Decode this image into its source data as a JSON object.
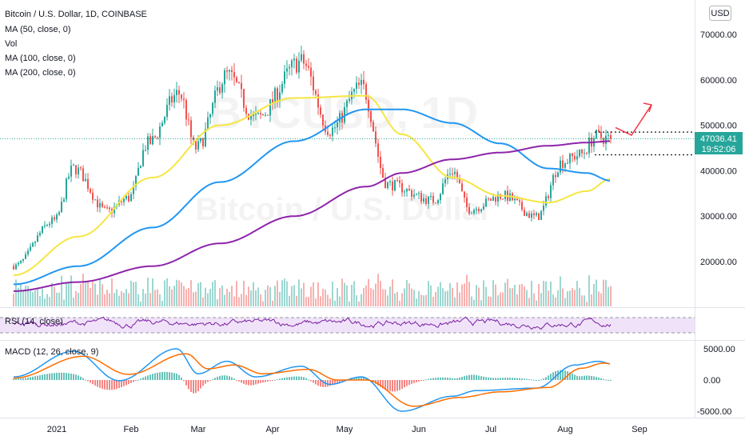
{
  "symbol_title": "Bitcoin / U.S. Dollar, 1D, COINBASE",
  "indicators": [
    "MA (50, close, 0)",
    "Vol",
    "MA (100, close, 0)",
    "MA (200, close, 0)"
  ],
  "watermark_symbol": "BTCUSD, 1D",
  "watermark_name": "Bitcoin / U.S. Dollar",
  "currency_button": "USD",
  "price_tag": "47036.41",
  "countdown_tag": "19:52:06",
  "rsi_label": "RSI (14, close)",
  "macd_label": "MACD (12, 26, close, 9)",
  "colors": {
    "up": "#26a69a",
    "down": "#ef5350",
    "ma50": "#f5e642",
    "ma100": "#2196f3",
    "ma200": "#8e24aa",
    "rsi": "#7b1fa2",
    "macd": "#2196f3",
    "signal": "#ff6d00",
    "arrow": "#f23645",
    "price_tag": "#26a69a"
  },
  "chart_data": [
    {
      "type": "candlestick",
      "title": "Bitcoin / U.S. Dollar, 1D, COINBASE",
      "x_tick_labels": [
        "2021",
        "Feb",
        "Mar",
        "Apr",
        "May",
        "Jun",
        "Jul",
        "Aug",
        "Sep"
      ],
      "y_tick_labels": [
        "70000.00",
        "60000.00",
        "50000.00",
        "40000.00",
        "30000.00",
        "20000.00"
      ],
      "ylim": [
        13000,
        74000
      ],
      "last_price": 47036.41,
      "ohlc_anchors": [
        {
          "date": "2020-12-14",
          "close": 19000
        },
        {
          "date": "2020-12-31",
          "close": 29000
        },
        {
          "date": "2021-01-08",
          "close": 40500
        },
        {
          "date": "2021-01-22",
          "close": 31000
        },
        {
          "date": "2021-01-31",
          "close": 34000
        },
        {
          "date": "2021-02-08",
          "close": 46000
        },
        {
          "date": "2021-02-21",
          "close": 57000
        },
        {
          "date": "2021-02-28",
          "close": 45000
        },
        {
          "date": "2021-03-13",
          "close": 61000
        },
        {
          "date": "2021-03-25",
          "close": 51500
        },
        {
          "date": "2021-04-13",
          "close": 64000
        },
        {
          "date": "2021-04-25",
          "close": 49000
        },
        {
          "date": "2021-05-08",
          "close": 58500
        },
        {
          "date": "2021-05-19",
          "close": 37000
        },
        {
          "date": "2021-06-07",
          "close": 33500
        },
        {
          "date": "2021-06-15",
          "close": 40000
        },
        {
          "date": "2021-06-22",
          "close": 31500
        },
        {
          "date": "2021-07-06",
          "close": 34500
        },
        {
          "date": "2021-07-20",
          "close": 29800
        },
        {
          "date": "2021-07-31",
          "close": 42000
        },
        {
          "date": "2021-08-07",
          "close": 43500
        },
        {
          "date": "2021-08-14",
          "close": 47500
        },
        {
          "date": "2021-08-20",
          "close": 47036
        }
      ],
      "moving_averages": {
        "MA 50": [
          {
            "date": "2020-12-14",
            "value": 17000
          },
          {
            "date": "2021-01-10",
            "value": 25500
          },
          {
            "date": "2021-02-10",
            "value": 38500
          },
          {
            "date": "2021-03-10",
            "value": 50000
          },
          {
            "date": "2021-04-10",
            "value": 56000
          },
          {
            "date": "2021-05-10",
            "value": 56500
          },
          {
            "date": "2021-05-25",
            "value": 48000
          },
          {
            "date": "2021-06-15",
            "value": 38500
          },
          {
            "date": "2021-07-05",
            "value": 34500
          },
          {
            "date": "2021-07-25",
            "value": 33000
          },
          {
            "date": "2021-08-10",
            "value": 35500
          },
          {
            "date": "2021-08-20",
            "value": 38200
          }
        ],
        "MA 100": [
          {
            "date": "2020-12-14",
            "value": 15000
          },
          {
            "date": "2021-01-10",
            "value": 19000
          },
          {
            "date": "2021-02-10",
            "value": 27500
          },
          {
            "date": "2021-03-10",
            "value": 37500
          },
          {
            "date": "2021-04-10",
            "value": 46500
          },
          {
            "date": "2021-05-10",
            "value": 53500
          },
          {
            "date": "2021-05-25",
            "value": 53500
          },
          {
            "date": "2021-06-15",
            "value": 50500
          },
          {
            "date": "2021-07-05",
            "value": 46000
          },
          {
            "date": "2021-07-25",
            "value": 40500
          },
          {
            "date": "2021-08-10",
            "value": 39500
          },
          {
            "date": "2021-08-20",
            "value": 37800
          }
        ],
        "MA 200": [
          {
            "date": "2020-12-14",
            "value": 13500
          },
          {
            "date": "2021-01-10",
            "value": 15500
          },
          {
            "date": "2021-02-10",
            "value": 19000
          },
          {
            "date": "2021-03-10",
            "value": 24000
          },
          {
            "date": "2021-04-10",
            "value": 30000
          },
          {
            "date": "2021-05-10",
            "value": 36500
          },
          {
            "date": "2021-05-25",
            "value": 39500
          },
          {
            "date": "2021-06-15",
            "value": 42500
          },
          {
            "date": "2021-07-05",
            "value": 44000
          },
          {
            "date": "2021-07-25",
            "value": 45500
          },
          {
            "date": "2021-08-10",
            "value": 46200
          },
          {
            "date": "2021-08-20",
            "value": 46500
          }
        ]
      },
      "horizontal_levels": [
        48500,
        43500
      ]
    },
    {
      "type": "line",
      "title": "RSI (14, close)",
      "levels": [
        70,
        30
      ]
    },
    {
      "type": "line",
      "title": "MACD (12, 26, close, 9)",
      "y_tick_labels": [
        "5000.00",
        "0.00",
        "-5000.00"
      ],
      "ylim": [
        -6200,
        6000
      ],
      "macd": [
        {
          "date": "2020-12-14",
          "value": 500
        },
        {
          "date": "2021-01-08",
          "value": 4600
        },
        {
          "date": "2021-01-27",
          "value": -100
        },
        {
          "date": "2021-02-20",
          "value": 5000
        },
        {
          "date": "2021-03-01",
          "value": 1000
        },
        {
          "date": "2021-03-13",
          "value": 3000
        },
        {
          "date": "2021-03-25",
          "value": 500
        },
        {
          "date": "2021-04-13",
          "value": 2200
        },
        {
          "date": "2021-04-25",
          "value": -700
        },
        {
          "date": "2021-05-08",
          "value": 500
        },
        {
          "date": "2021-05-25",
          "value": -5000
        },
        {
          "date": "2021-06-15",
          "value": -2600
        },
        {
          "date": "2021-06-25",
          "value": -1700
        },
        {
          "date": "2021-07-20",
          "value": -1300
        },
        {
          "date": "2021-08-05",
          "value": 2400
        },
        {
          "date": "2021-08-15",
          "value": 3000
        },
        {
          "date": "2021-08-20",
          "value": 2600
        }
      ],
      "signal": [
        {
          "date": "2020-12-14",
          "value": 300
        },
        {
          "date": "2021-01-12",
          "value": 3800
        },
        {
          "date": "2021-01-31",
          "value": 900
        },
        {
          "date": "2021-02-24",
          "value": 4200
        },
        {
          "date": "2021-03-05",
          "value": 1800
        },
        {
          "date": "2021-03-16",
          "value": 2400
        },
        {
          "date": "2021-03-28",
          "value": 1000
        },
        {
          "date": "2021-04-16",
          "value": 1700
        },
        {
          "date": "2021-04-28",
          "value": 0
        },
        {
          "date": "2021-05-10",
          "value": 0
        },
        {
          "date": "2021-05-30",
          "value": -4200
        },
        {
          "date": "2021-06-18",
          "value": -2800
        },
        {
          "date": "2021-07-05",
          "value": -1900
        },
        {
          "date": "2021-07-25",
          "value": -1200
        },
        {
          "date": "2021-08-08",
          "value": 1900
        },
        {
          "date": "2021-08-17",
          "value": 2700
        },
        {
          "date": "2021-08-20",
          "value": 2600
        }
      ]
    }
  ]
}
